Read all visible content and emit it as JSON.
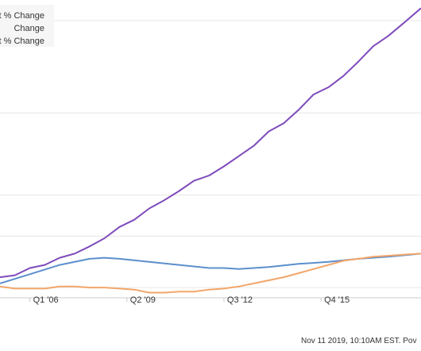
{
  "chart_data": {
    "type": "line",
    "categories": [
      "Q1 '06",
      "Q2 '09",
      "Q3 '12",
      "Q4 '15"
    ],
    "legend_placement": "top-left",
    "grid": "horizontal",
    "series": [
      {
        "name": "t % Change",
        "color": "#7e4bbb",
        "x": [
          2005.0,
          2005.5,
          2006.0,
          2006.5,
          2007.0,
          2007.5,
          2008.0,
          2008.5,
          2009.0,
          2009.5,
          2010.0,
          2010.5,
          2011.0,
          2011.5,
          2012.0,
          2012.5,
          2013.0,
          2013.5,
          2014.0,
          2014.5,
          2015.0,
          2015.5,
          2016.0,
          2016.5,
          2017.0,
          2017.5,
          2018.0,
          2018.5,
          2019.1
        ],
        "y": [
          0,
          2,
          9,
          12,
          19,
          23,
          30,
          38,
          49,
          56,
          67,
          75,
          84,
          94,
          99,
          108,
          118,
          128,
          142,
          150,
          163,
          178,
          185,
          196,
          210,
          225,
          235,
          247,
          262
        ]
      },
      {
        "name": "Change",
        "color": "#5b8fcc",
        "x": [
          2005.0,
          2006.0,
          2007.0,
          2008.0,
          2008.5,
          2009.0,
          2010.0,
          2011.0,
          2012.0,
          2012.5,
          2013.0,
          2014.0,
          2015.0,
          2016.0,
          2017.0,
          2018.0,
          2019.1
        ],
        "y": [
          -6,
          3,
          12,
          18,
          19,
          18,
          15,
          12,
          9,
          9,
          8,
          10,
          13,
          15,
          18,
          20,
          23
        ]
      },
      {
        "name": "ebt % Change",
        "color": "#f2a66a",
        "x": [
          2005.0,
          2005.5,
          2006.0,
          2006.5,
          2007.0,
          2007.5,
          2008.0,
          2008.5,
          2009.0,
          2009.5,
          2010.0,
          2010.5,
          2011.0,
          2011.5,
          2012.0,
          2012.5,
          2013.0,
          2013.5,
          2014.0,
          2014.5,
          2015.0,
          2015.5,
          2016.0,
          2016.5,
          2017.0,
          2017.5,
          2018.0,
          2018.5,
          2019.1
        ],
        "y": [
          -9,
          -11,
          -11,
          -11,
          -9,
          -9,
          -10,
          -10,
          -11,
          -12,
          -15,
          -15,
          -14,
          -14,
          -12,
          -11,
          -9,
          -6,
          -3,
          0,
          4,
          8,
          12,
          16,
          18,
          20,
          21,
          22,
          23
        ]
      }
    ],
    "xlim": [
      2005.0,
      2019.1
    ],
    "ylim": [
      -20,
      270
    ],
    "gridline_values": [
      -10,
      40,
      80,
      160,
      250
    ]
  },
  "footer_text": "Nov 11 2019, 10:10AM EST. Pov"
}
